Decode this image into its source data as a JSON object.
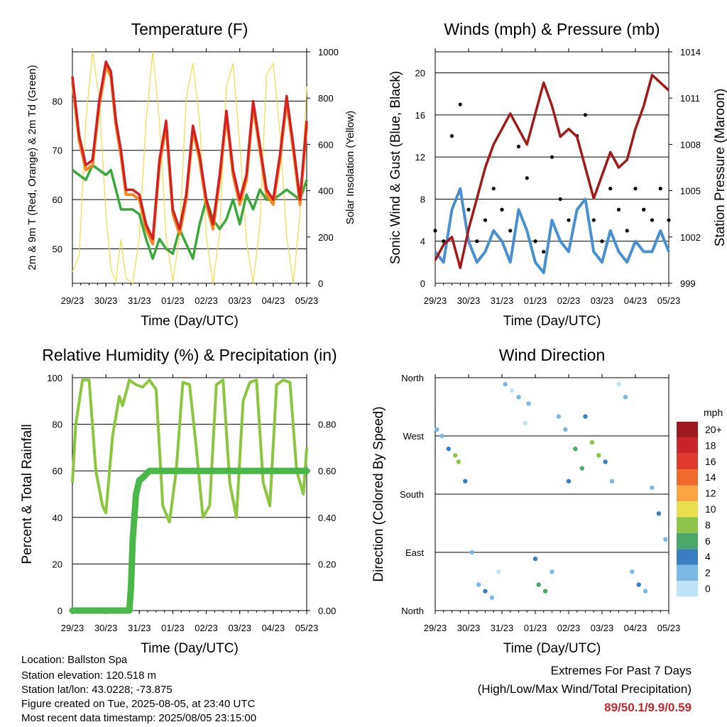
{
  "x_ticks": [
    "29/23",
    "30/23",
    "31/23",
    "01/23",
    "02/23",
    "03/23",
    "04/23",
    "05/23"
  ],
  "colors": {
    "t9": "#d42020",
    "t2": "#f08a24",
    "td": "#3aa83a",
    "solar": "#f2dc4a",
    "gust": "#000000",
    "wind": "#4a90d0",
    "pressure": "#a01a1a",
    "rh": "#8cc63e",
    "precip": "#4ab848"
  },
  "info": {
    "location": "Location: Ballston Spa",
    "elevation": "Station elevation: 120.518 m",
    "latlon": "Station lat/lon: 43.0228; -73.875",
    "created": "Figure created on Tue, 2025-08-05, at 23:40 UTC",
    "recent": "Most recent data timestamp: 2025/08/05 23:15:00"
  },
  "extremes": {
    "line1": "Extremes For Past 7 Days",
    "line2": "(High/Low/Max Wind/Total Precipitation)",
    "values": "89/50.1/9.9/0.59"
  },
  "chart_data": [
    {
      "type": "line",
      "title": "Temperature (F)",
      "xlabel": "Time (Day/UTC)",
      "ylabel": "2m & 9m T (Red, Orange) & 2m Td (Green)",
      "y2label": "Solar Insolation (Yellow)",
      "ylim": [
        43,
        90
      ],
      "y_ticks": [
        50,
        60,
        70,
        80
      ],
      "y2lim": [
        0,
        1000
      ],
      "y2_ticks": [
        0,
        200,
        400,
        600,
        800,
        1000
      ],
      "x": [
        0,
        0.2,
        0.4,
        0.6,
        0.8,
        1.0,
        1.15,
        1.3,
        1.45,
        1.6,
        1.8,
        2.0,
        2.2,
        2.4,
        2.6,
        2.8,
        3.0,
        3.2,
        3.4,
        3.6,
        3.8,
        4.0,
        4.2,
        4.4,
        4.6,
        4.8,
        5.0,
        5.2,
        5.4,
        5.6,
        5.8,
        6.0,
        6.2,
        6.4,
        6.6,
        6.8,
        7.0
      ],
      "series": [
        {
          "name": "9m T",
          "values": [
            85,
            73,
            67,
            68,
            80,
            88,
            86,
            76,
            70,
            62,
            62,
            61,
            55,
            52,
            68,
            76,
            58,
            54,
            61,
            75,
            69,
            60,
            55,
            65,
            78,
            66,
            60,
            65,
            80,
            71,
            62,
            60,
            69,
            81,
            71,
            60,
            76
          ]
        },
        {
          "name": "2m T",
          "values": [
            84,
            72,
            66,
            67,
            79,
            87,
            85,
            75,
            69,
            61,
            61,
            60,
            54,
            51,
            67,
            75,
            57,
            53,
            60,
            74,
            68,
            59,
            54,
            64,
            77,
            65,
            59,
            64,
            79,
            70,
            61,
            59,
            68,
            80,
            70,
            59,
            75
          ]
        },
        {
          "name": "2m Td",
          "values": [
            66,
            65,
            64,
            67,
            66,
            65,
            66,
            62,
            58,
            58,
            58,
            57,
            52,
            48,
            52,
            50,
            49,
            54,
            51,
            48,
            55,
            60,
            56,
            54,
            56,
            60,
            55,
            61,
            58,
            62,
            60,
            60,
            61,
            62,
            61,
            60,
            64
          ]
        },
        {
          "name": "Solar",
          "values": [
            50,
            120,
            700,
            1000,
            800,
            300,
            60,
            10,
            190,
            20,
            0,
            200,
            700,
            1000,
            700,
            200,
            10,
            200,
            800,
            950,
            700,
            200,
            0,
            220,
            850,
            950,
            600,
            180,
            0,
            250,
            900,
            950,
            650,
            200,
            0,
            300,
            850
          ]
        }
      ]
    },
    {
      "type": "scatter",
      "title": "Winds (mph) & Pressure (mb)",
      "xlabel": "Time (Day/UTC)",
      "ylabel": "Sonic Wind & Gust (Blue, Black)",
      "y2label": "Station Pressure (Maroon)",
      "ylim": [
        0,
        22
      ],
      "y_ticks": [
        0,
        4,
        8,
        12,
        16,
        20
      ],
      "y2lim": [
        999,
        1014
      ],
      "y2_ticks": [
        999,
        1002,
        1005,
        1008,
        1011,
        1014
      ],
      "x": [
        0,
        0.25,
        0.5,
        0.75,
        1.0,
        1.25,
        1.5,
        1.75,
        2.0,
        2.25,
        2.5,
        2.75,
        3.0,
        3.25,
        3.5,
        3.75,
        4.0,
        4.25,
        4.5,
        4.75,
        5.0,
        5.25,
        5.5,
        5.75,
        6.0,
        6.25,
        6.5,
        6.75,
        7.0
      ],
      "series": [
        {
          "name": "Gust",
          "values": [
            5,
            4,
            14,
            17,
            7,
            4,
            6,
            9,
            7,
            5,
            13,
            10,
            4,
            3,
            12,
            8,
            6,
            14,
            16,
            6,
            4,
            9,
            7,
            5,
            9,
            7,
            6,
            9,
            6
          ]
        },
        {
          "name": "Wind",
          "values": [
            3,
            2,
            7,
            9,
            4,
            2,
            3,
            5,
            4,
            2,
            7,
            5,
            2,
            1,
            6,
            4,
            3,
            7,
            8,
            3,
            2,
            5,
            3,
            2,
            4,
            3,
            3,
            5,
            3
          ]
        },
        {
          "name": "Pressure",
          "values": [
            1000.5,
            1001.5,
            1002.0,
            1000.0,
            1002.5,
            1004.5,
            1006.5,
            1008.0,
            1009.0,
            1010.0,
            1009.0,
            1008.0,
            1010.0,
            1012.0,
            1010.5,
            1008.5,
            1009.0,
            1008.5,
            1006.5,
            1004.5,
            1006.0,
            1007.5,
            1006.5,
            1007.0,
            1009.0,
            1010.5,
            1012.5,
            1012.0,
            1011.5
          ]
        }
      ]
    },
    {
      "type": "line",
      "title": "Relative Humidity (%) & Precipitation (in)",
      "xlabel": "Time (Day/UTC)",
      "ylabel": "Percent & Total Rainfall",
      "ylim": [
        0,
        100
      ],
      "y_ticks": [
        0,
        20,
        40,
        60,
        80,
        100
      ],
      "y2lim": [
        0,
        1.0
      ],
      "y2_ticks": [
        0.0,
        0.2,
        0.4,
        0.6,
        0.8
      ],
      "y2_tick_labels": [
        "0.00",
        "0.20",
        "0.40",
        "0.60",
        "0.80"
      ],
      "series": [
        {
          "name": "RH",
          "x": [
            0,
            0.1,
            0.3,
            0.5,
            0.7,
            0.9,
            1.0,
            1.2,
            1.4,
            1.5,
            1.7,
            1.9,
            2.1,
            2.3,
            2.5,
            2.7,
            2.9,
            3.1,
            3.3,
            3.5,
            3.7,
            3.9,
            4.1,
            4.3,
            4.5,
            4.7,
            4.9,
            5.1,
            5.3,
            5.5,
            5.7,
            5.9,
            6.1,
            6.3,
            6.5,
            6.7,
            6.9,
            7.0
          ],
          "values": [
            55,
            80,
            99,
            99,
            60,
            45,
            42,
            75,
            92,
            88,
            99,
            97,
            96,
            99,
            95,
            45,
            38,
            60,
            98,
            97,
            70,
            40,
            45,
            97,
            99,
            55,
            40,
            90,
            98,
            99,
            55,
            45,
            97,
            99,
            98,
            60,
            50,
            70
          ]
        },
        {
          "name": "Precip",
          "x": [
            0,
            1.7,
            1.75,
            1.8,
            1.9,
            2.0,
            2.1,
            2.3,
            7.0
          ],
          "values": [
            0,
            0,
            0.1,
            0.3,
            0.5,
            0.56,
            0.57,
            0.6,
            0.6
          ]
        }
      ]
    },
    {
      "type": "scatter",
      "title": "Wind Direction",
      "xlabel": "Time (Day/UTC)",
      "ylabel": "Direction (Colored By Speed)",
      "y_ticks": [
        "North",
        "East",
        "South",
        "West",
        "North"
      ],
      "ylim": [
        0,
        360
      ],
      "colorbar": {
        "title": "mph",
        "labels": [
          "20+",
          "18",
          "16",
          "14",
          "12",
          "10",
          "8",
          "6",
          "4",
          "2",
          "0"
        ],
        "colors": [
          "#9e1a1f",
          "#c8242a",
          "#e03a2c",
          "#f06a2c",
          "#f7a441",
          "#e8df4f",
          "#8ec44a",
          "#4ca86a",
          "#3c7ec2",
          "#7bb8e6",
          "#bfe3f7"
        ]
      },
      "series": [
        {
          "name": "Direction",
          "x": [
            0.05,
            0.2,
            0.4,
            0.6,
            0.7,
            0.9,
            1.1,
            1.3,
            1.5,
            1.7,
            1.9,
            2.1,
            2.3,
            2.5,
            2.7,
            2.8,
            3.0,
            3.1,
            3.3,
            3.5,
            3.7,
            3.9,
            4.0,
            4.2,
            4.4,
            4.5,
            4.7,
            4.9,
            5.1,
            5.3,
            5.5,
            5.7,
            5.9,
            6.1,
            6.3,
            6.5,
            6.7,
            6.9
          ],
          "values": [
            280,
            270,
            250,
            240,
            230,
            200,
            90,
            40,
            30,
            20,
            60,
            350,
            340,
            330,
            290,
            320,
            80,
            40,
            30,
            60,
            300,
            280,
            200,
            250,
            220,
            300,
            260,
            240,
            230,
            200,
            350,
            330,
            60,
            40,
            30,
            190,
            150,
            110
          ],
          "speed": [
            3,
            2,
            5,
            8,
            9,
            4,
            2,
            3,
            4,
            2,
            1,
            2,
            1,
            3,
            1,
            2,
            5,
            7,
            6,
            3,
            2,
            3,
            5,
            7,
            6,
            4,
            8,
            9,
            5,
            3,
            1,
            2,
            2,
            4,
            3,
            2,
            4,
            3
          ]
        }
      ]
    }
  ]
}
